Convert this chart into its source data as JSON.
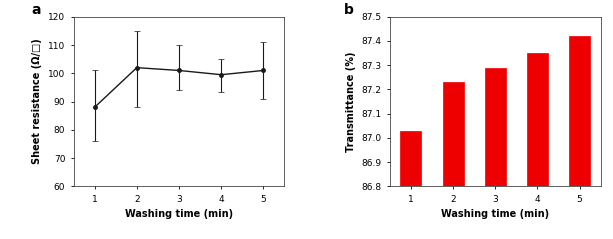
{
  "line_x": [
    1,
    2,
    3,
    4,
    5
  ],
  "line_y": [
    88,
    102,
    101,
    99.5,
    101
  ],
  "line_yerr_upper": [
    13,
    13,
    9,
    5.5,
    10
  ],
  "line_yerr_lower": [
    12,
    14,
    7,
    6,
    10
  ],
  "line_color": "#1a1a1a",
  "line_marker": "o",
  "line_markersize": 3,
  "line_ylabel": "Sheet resistance (Ω/□)",
  "line_xlabel": "Washing time (min)",
  "line_ylim": [
    60,
    120
  ],
  "line_yticks": [
    60,
    70,
    80,
    90,
    100,
    110,
    120
  ],
  "line_xticks": [
    1,
    2,
    3,
    4,
    5
  ],
  "line_label": "a",
  "bar_x": [
    1,
    2,
    3,
    4,
    5
  ],
  "bar_y": [
    87.03,
    87.23,
    87.29,
    87.35,
    87.42
  ],
  "bar_color": "#ee0000",
  "bar_ylabel": "Transmittance (%)",
  "bar_xlabel": "Washing time (min)",
  "bar_ylim": [
    86.8,
    87.5
  ],
  "bar_yticks": [
    86.8,
    86.9,
    87.0,
    87.1,
    87.2,
    87.3,
    87.4,
    87.5
  ],
  "bar_xticks": [
    1,
    2,
    3,
    4,
    5
  ],
  "bar_width": 0.5,
  "bar_label": "b",
  "label_fontsize": 8,
  "tick_fontsize": 6.5,
  "axis_label_fontsize": 7,
  "background_color": "#ffffff"
}
